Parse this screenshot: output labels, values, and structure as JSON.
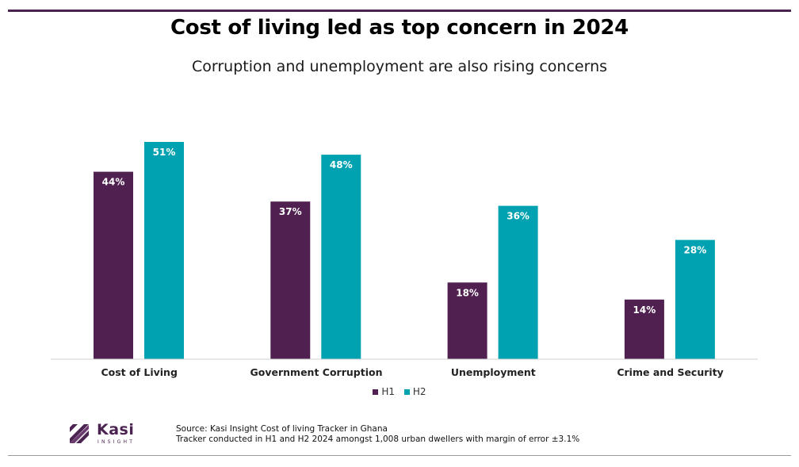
{
  "header": {
    "title": "Cost of living led as top concern in 2024",
    "subtitle": "Corruption and unemployment are also rising concerns"
  },
  "colors": {
    "H1": "#4f2050",
    "H2": "#00a2b1",
    "rule": "#4a2350",
    "axis": "#d0d0d0"
  },
  "chart_data": {
    "type": "bar",
    "title": "Cost of living led as top concern in 2024",
    "subtitle": "Corruption and unemployment are also rising concerns",
    "categories": [
      "Cost of Living",
      "Government Corruption",
      "Unemployment",
      "Crime and Security"
    ],
    "series": [
      {
        "name": "H1",
        "values": [
          44,
          37,
          18,
          14
        ],
        "labels": [
          "44%",
          "37%",
          "18%",
          "14%"
        ]
      },
      {
        "name": "H2",
        "values": [
          51,
          48,
          36,
          28
        ],
        "labels": [
          "51%",
          "48%",
          "36%",
          "28%"
        ]
      }
    ],
    "ylim": [
      0,
      51
    ],
    "grid": false,
    "legend_position": "bottom"
  },
  "legend": {
    "h1": "H1",
    "h2": "H2"
  },
  "logo": {
    "name": "Kasi",
    "sub": "INSIGHT"
  },
  "footer": {
    "source_line1": "Source: Kasi Insight Cost of living Tracker in Ghana",
    "source_line2": "Tracker conducted  in H1 and H2 2024 amongst 1,008 urban dwellers with margin of error ±3.1%"
  }
}
